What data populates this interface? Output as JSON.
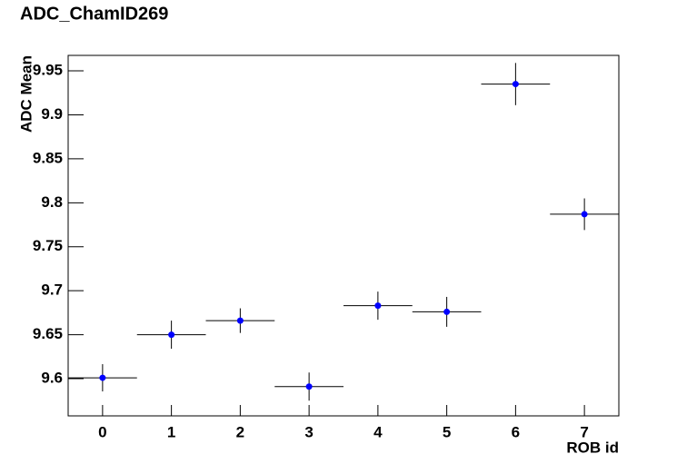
{
  "chart_data": {
    "type": "errorbar",
    "title": "ADC_ChamID269",
    "x_label": "ROB id",
    "y_label": "ADC Mean",
    "x": [
      0,
      1,
      2,
      3,
      4,
      5,
      6,
      7
    ],
    "xerr": [
      0.5,
      0.5,
      0.5,
      0.5,
      0.5,
      0.5,
      0.5,
      0.5
    ],
    "values": [
      9.601,
      9.65,
      9.666,
      9.591,
      9.683,
      9.676,
      9.935,
      9.787
    ],
    "yerr": [
      0.0155,
      0.016,
      0.014,
      0.016,
      0.016,
      0.017,
      0.024,
      0.018
    ],
    "color": "#0000ff",
    "xlim": [
      -0.5,
      7.5
    ],
    "xticks": [
      0,
      1,
      2,
      3,
      4,
      5,
      6,
      7
    ],
    "ylim": [
      9.5577,
      9.9676
    ],
    "yticks": [
      9.6,
      9.65,
      9.7,
      9.75,
      9.8,
      9.85,
      9.9,
      9.95
    ],
    "grid": false
  }
}
